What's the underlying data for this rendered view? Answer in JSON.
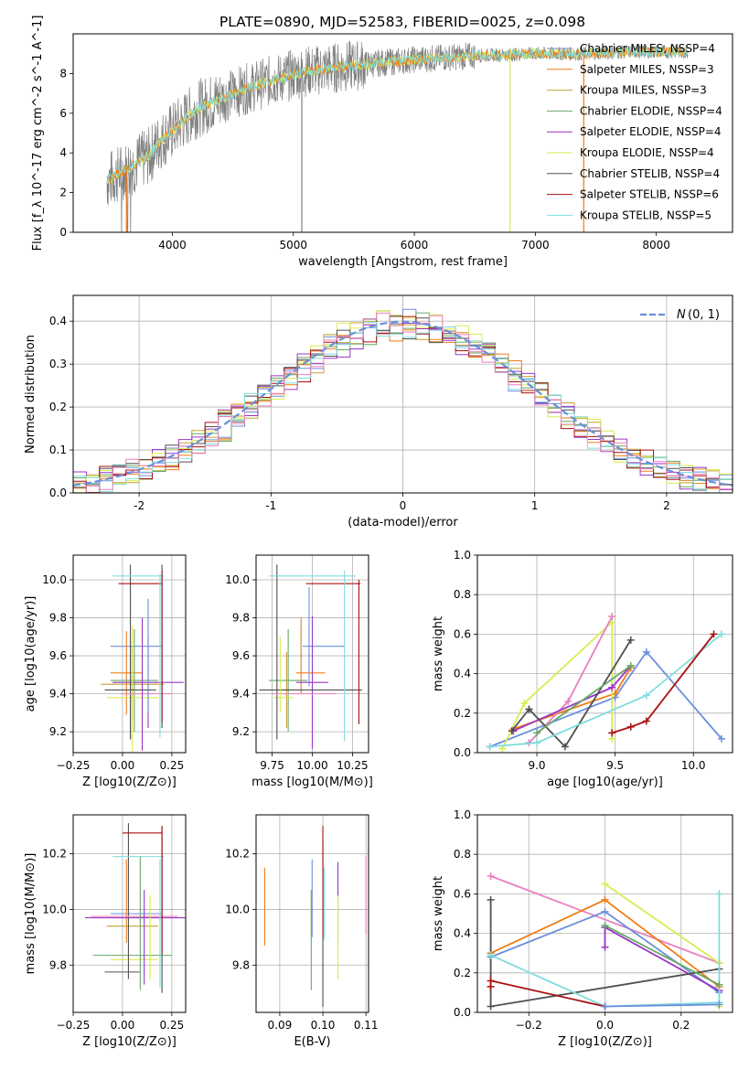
{
  "figure_title": "PLATE=0890, MJD=52583, FIBERID=0025, z=0.098",
  "colors": {
    "chabrier_miles": "#6a8fdc",
    "salpeter_miles": "#f07c16",
    "kroupa_miles": "#c8a032",
    "chabrier_elodie": "#66aa66",
    "salpeter_elodie": "#9a36c8",
    "kroupa_elodie": "#d8ec50",
    "chabrier_stelib": "#505050",
    "salpeter_stelib": "#aa1010",
    "kroupa_stelib": "#80dcdc",
    "pink": "#e880c0",
    "data_gray": "#808080",
    "normal_curve": "#6a8fdc",
    "grid": "#b0b0b0"
  },
  "chart_data": [
    {
      "id": "spectrum",
      "type": "line",
      "xlabel": "wavelength [Angstrom, rest frame]",
      "ylabel": "Flux [f_λ 10^-17 erg cm^-2 s^-1 A^-1]",
      "xlim": [
        3180,
        8630
      ],
      "ylim": [
        0,
        10
      ],
      "xticks": [
        4000,
        5000,
        6000,
        7000,
        8000
      ],
      "yticks": [
        0,
        2,
        4,
        6,
        8
      ],
      "grid": false,
      "legend_position": "right",
      "legend": [
        "Chabrier MILES, N_SSP=4",
        "Salpeter MILES, N_SSP=3",
        "Kroupa MILES, N_SSP=3",
        "Chabrier ELODIE, N_SSP=4",
        "Salpeter ELODIE, N_SSP=4",
        "Kroupa ELODIE, N_SSP=4",
        "Chabrier STELIB, N_SSP=4",
        "Salpeter STELIB, N_SSP=6",
        "Kroupa STELIB, N_SSP=5"
      ],
      "model_continuum": {
        "x": [
          3460,
          3600,
          3800,
          3900,
          4000,
          4200,
          4500,
          4800,
          5100,
          5500,
          6000,
          6500,
          7000,
          7400,
          7800,
          8200
        ],
        "y": [
          2.6,
          3.1,
          3.8,
          4.6,
          5.1,
          6.2,
          7.0,
          7.6,
          8.1,
          8.4,
          8.7,
          8.9,
          9.0,
          9.0,
          9.1,
          9.1
        ]
      }
    },
    {
      "id": "residuals",
      "type": "bar",
      "xlabel": "(data-model)/error",
      "ylabel": "Normed distribution",
      "xlim": [
        -2.5,
        2.5
      ],
      "ylim": [
        0,
        0.46
      ],
      "xticks": [
        -2,
        -1,
        0,
        1,
        2
      ],
      "yticks": [
        0.0,
        0.1,
        0.2,
        0.3,
        0.4
      ],
      "grid": true,
      "legend_position": "top-right",
      "legend": [
        "N(0,1)"
      ],
      "bin_width": 0.1
    },
    {
      "id": "age_vs_Z",
      "type": "scatter",
      "xlabel": "Z [log10(Z/Z⊙)]",
      "ylabel": "age [log10(age/yr)]",
      "xlim": [
        -0.25,
        0.32
      ],
      "ylim": [
        9.09,
        10.13
      ],
      "xticks": [
        -0.25,
        0.0,
        0.25
      ],
      "xtick_labels": [
        "−0.25",
        "0.00",
        "0.25"
      ],
      "yticks": [
        9.2,
        9.4,
        9.6,
        9.8,
        10.0
      ],
      "grid": true,
      "points": [
        {
          "c": "chabrier_miles",
          "x": 0.07,
          "xerr": 0.13,
          "y": 9.65,
          "yerr": 0.0
        },
        {
          "c": "salpeter_miles",
          "x": 0.02,
          "xerr": 0.08,
          "y": 9.51,
          "yerr": 0.22
        },
        {
          "c": "kroupa_miles",
          "x": 0.05,
          "xerr": 0.16,
          "y": 9.45,
          "yerr": 0.19
        },
        {
          "c": "chabrier_elodie",
          "x": 0.06,
          "xerr": 0.12,
          "y": 9.47,
          "yerr": 0.27
        },
        {
          "c": "salpeter_elodie",
          "x": 0.13,
          "xerr": 0.18,
          "y": 9.46,
          "yerr": 0.24
        },
        {
          "c": "kroupa_elodie",
          "x": 0.05,
          "xerr": 0.13,
          "y": 9.38,
          "yerr": 0.38
        },
        {
          "c": "chabrier_stelib",
          "x": 0.04,
          "xerr": 0.13,
          "y": 9.42,
          "yerr": 0.26
        },
        {
          "c": "chabrier_stelib",
          "x": 0.04,
          "xerr": 0.0,
          "y": 9.62,
          "yerr": 0.46
        },
        {
          "c": "salpeter_stelib",
          "x": 0.09,
          "xerr": 0.11,
          "y": 9.98,
          "yerr": 0.0
        },
        {
          "c": "kroupa_stelib",
          "x": 0.08,
          "xerr": 0.13,
          "y": 10.02,
          "yerr": 0.0
        },
        {
          "c": "pink",
          "x": 0.12,
          "xerr": 0.13,
          "y": 9.4,
          "yerr": 0.0
        },
        {
          "c": "chabrier_stelib",
          "x": 0.2,
          "xerr": 0.0,
          "y": 9.65,
          "yerr": 0.43
        },
        {
          "c": "kroupa_stelib",
          "x": 0.19,
          "xerr": 0.0,
          "y": 9.6,
          "yerr": 0.43
        },
        {
          "c": "salpeter_stelib",
          "x": 0.2,
          "xerr": 0.0,
          "y": 9.65,
          "yerr": 0.4
        },
        {
          "c": "salpeter_elodie",
          "x": 0.1,
          "xerr": 0.0,
          "y": 9.45,
          "yerr": 0.35
        },
        {
          "c": "chabrier_miles",
          "x": 0.13,
          "xerr": 0.0,
          "y": 9.6,
          "yerr": 0.3
        }
      ]
    },
    {
      "id": "age_vs_mass",
      "type": "scatter",
      "xlabel": "mass [log10(M/M⊙)]",
      "ylabel": "",
      "xlim": [
        9.65,
        10.35
      ],
      "ylim": [
        9.09,
        10.13
      ],
      "xticks": [
        9.75,
        10.0,
        10.25
      ],
      "xtick_labels": [
        "9.75",
        "10.00",
        "10.25"
      ],
      "yticks": [
        9.2,
        9.4,
        9.6,
        9.8,
        10.0
      ],
      "grid": true,
      "points": [
        {
          "c": "chabrier_miles",
          "x": 10.07,
          "xerr": 0.13,
          "y": 9.65,
          "yerr": 0.0
        },
        {
          "c": "chabrier_miles",
          "x": 9.98,
          "xerr": 0.0,
          "y": 9.7,
          "yerr": 0.26
        },
        {
          "c": "salpeter_miles",
          "x": 9.99,
          "xerr": 0.09,
          "y": 9.51,
          "yerr": 0.0
        },
        {
          "c": "salpeter_miles",
          "x": 9.93,
          "xerr": 0.0,
          "y": 9.6,
          "yerr": 0.2
        },
        {
          "c": "kroupa_miles",
          "x": 9.84,
          "xerr": 0.07,
          "y": 9.42,
          "yerr": 0.2
        },
        {
          "c": "chabrier_elodie",
          "x": 9.85,
          "xerr": 0.12,
          "y": 9.47,
          "yerr": 0.27
        },
        {
          "c": "salpeter_elodie",
          "x": 10.0,
          "xerr": 0.1,
          "y": 9.46,
          "yerr": 0.35
        },
        {
          "c": "kroupa_elodie",
          "x": 9.82,
          "xerr": 0.06,
          "y": 9.38,
          "yerr": 0.0
        },
        {
          "c": "chabrier_stelib",
          "x": 9.99,
          "xerr": 0.32,
          "y": 9.42,
          "yerr": 0.0
        },
        {
          "c": "chabrier_stelib",
          "x": 9.78,
          "xerr": 0.0,
          "y": 9.62,
          "yerr": 0.46
        },
        {
          "c": "salpeter_stelib",
          "x": 10.13,
          "xerr": 0.17,
          "y": 9.98,
          "yerr": 0.0
        },
        {
          "c": "salpeter_stelib",
          "x": 10.29,
          "xerr": 0.0,
          "y": 9.62,
          "yerr": 0.38
        },
        {
          "c": "kroupa_stelib",
          "x": 10.0,
          "xerr": 0.27,
          "y": 10.02,
          "yerr": 0.0
        },
        {
          "c": "kroupa_stelib",
          "x": 10.2,
          "xerr": 0.0,
          "y": 9.6,
          "yerr": 0.45
        },
        {
          "c": "pink",
          "x": 9.95,
          "xerr": 0.2,
          "y": 9.4,
          "yerr": 0.0
        },
        {
          "c": "kroupa_elodie",
          "x": 9.8,
          "xerr": 0.0,
          "y": 9.5,
          "yerr": 0.2
        }
      ]
    },
    {
      "id": "weight_vs_age",
      "type": "line",
      "xlabel": "age [log10(age/yr)]",
      "ylabel": "mass weight",
      "xlim": [
        8.62,
        10.25
      ],
      "ylim": [
        0,
        1.0
      ],
      "xticks": [
        9.0,
        9.5,
        10.0
      ],
      "xtick_labels": [
        "9.0",
        "9.5",
        "10.0"
      ],
      "yticks": [
        0.0,
        0.2,
        0.4,
        0.6,
        0.8,
        1.0
      ],
      "grid": true,
      "series": [
        {
          "c": "chabrier_miles",
          "x": [
            8.7,
            9.5,
            9.7,
            10.18
          ],
          "y": [
            0.03,
            0.28,
            0.51,
            0.07
          ]
        },
        {
          "c": "salpeter_miles",
          "x": [
            8.85,
            9.5,
            9.6
          ],
          "y": [
            0.12,
            0.3,
            0.43
          ]
        },
        {
          "c": "kroupa_elodie",
          "x": [
            8.78,
            8.92,
            9.48,
            9.48
          ],
          "y": [
            0.02,
            0.25,
            0.66,
            0.07
          ]
        },
        {
          "c": "pink",
          "x": [
            8.95,
            9.2,
            9.48
          ],
          "y": [
            0.05,
            0.26,
            0.69
          ]
        },
        {
          "c": "salpeter_elodie",
          "x": [
            8.85,
            9.48,
            9.6
          ],
          "y": [
            0.11,
            0.33,
            0.44
          ]
        },
        {
          "c": "chabrier_stelib",
          "x": [
            8.95,
            9.18,
            9.6
          ],
          "y": [
            0.22,
            0.03,
            0.57
          ]
        },
        {
          "c": "chabrier_stelib",
          "x": [
            8.84,
            8.95
          ],
          "y": [
            0.11,
            0.22
          ]
        },
        {
          "c": "kroupa_stelib",
          "x": [
            8.7,
            9.0,
            9.7,
            10.18
          ],
          "y": [
            0.03,
            0.05,
            0.29,
            0.6
          ]
        },
        {
          "c": "salpeter_stelib",
          "x": [
            9.48,
            9.6,
            9.7,
            10.13
          ],
          "y": [
            0.1,
            0.13,
            0.16,
            0.6
          ]
        },
        {
          "c": "chabrier_elodie",
          "x": [
            9.0,
            9.6
          ],
          "y": [
            0.1,
            0.44
          ]
        }
      ]
    },
    {
      "id": "mass_vs_Z",
      "type": "scatter",
      "xlabel": "Z [log10(Z/Z⊙)]",
      "ylabel": "mass [log10(M/M⊙)]",
      "xlim": [
        -0.25,
        0.32
      ],
      "ylim": [
        9.63,
        10.34
      ],
      "xticks": [
        -0.25,
        0.0,
        0.25
      ],
      "xtick_labels": [
        "−0.25",
        "0.00",
        "0.25"
      ],
      "yticks": [
        9.8,
        10.0,
        10.2
      ],
      "grid": true,
      "points": [
        {
          "c": "chabrier_miles",
          "x": 0.07,
          "xerr": 0.13,
          "y": 9.985,
          "yerr": 0.0
        },
        {
          "c": "salpeter_miles",
          "x": 0.02,
          "xerr": 0.0,
          "y": 10.03,
          "yerr": 0.15
        },
        {
          "c": "kroupa_miles",
          "x": 0.05,
          "xerr": 0.13,
          "y": 9.94,
          "yerr": 0.0
        },
        {
          "c": "chabrier_elodie",
          "x": 0.05,
          "xerr": 0.2,
          "y": 9.835,
          "yerr": 0.0
        },
        {
          "c": "salpeter_elodie",
          "x": 0.07,
          "xerr": 0.26,
          "y": 9.97,
          "yerr": 0.0
        },
        {
          "c": "kroupa_elodie",
          "x": 0.06,
          "xerr": 0.12,
          "y": 9.82,
          "yerr": 0.0
        },
        {
          "c": "chabrier_stelib",
          "x": 0.0,
          "xerr": 0.09,
          "y": 9.775,
          "yerr": 0.0
        },
        {
          "c": "chabrier_stelib",
          "x": 0.03,
          "xerr": 0.0,
          "y": 10.03,
          "yerr": 0.28
        },
        {
          "c": "salpeter_stelib",
          "x": 0.1,
          "xerr": 0.1,
          "y": 10.275,
          "yerr": 0.0
        },
        {
          "c": "kroupa_stelib",
          "x": 0.08,
          "xerr": 0.13,
          "y": 10.19,
          "yerr": 0.0
        },
        {
          "c": "pink",
          "x": 0.06,
          "xerr": 0.22,
          "y": 9.975,
          "yerr": 0.0
        },
        {
          "c": "chabrier_stelib",
          "x": 0.2,
          "xerr": 0.0,
          "y": 10.0,
          "yerr": 0.3
        },
        {
          "c": "salpeter_stelib",
          "x": 0.2,
          "xerr": 0.0,
          "y": 10.07,
          "yerr": 0.23
        },
        {
          "c": "kroupa_stelib",
          "x": 0.19,
          "xerr": 0.0,
          "y": 9.95,
          "yerr": 0.23
        },
        {
          "c": "kroupa_elodie",
          "x": 0.14,
          "xerr": 0.0,
          "y": 9.9,
          "yerr": 0.15
        },
        {
          "c": "chabrier_elodie",
          "x": 0.09,
          "xerr": 0.0,
          "y": 9.95,
          "yerr": 0.24
        },
        {
          "c": "salpeter_elodie",
          "x": 0.11,
          "xerr": 0.0,
          "y": 9.9,
          "yerr": 0.17
        }
      ]
    },
    {
      "id": "mass_vs_ebv",
      "type": "scatter",
      "xlabel": "E(B-V)",
      "ylabel": "",
      "xlim": [
        0.0845,
        0.1106
      ],
      "ylim": [
        9.63,
        10.34
      ],
      "xticks": [
        0.09,
        0.1,
        0.11
      ],
      "xtick_labels": [
        "0.09",
        "0.10",
        "0.11"
      ],
      "yticks": [
        9.8,
        10.0,
        10.2
      ],
      "grid": true,
      "points": [
        {
          "c": "salpeter_miles",
          "x": 0.0865,
          "xerr": 0.0,
          "y": 10.01,
          "yerr": 0.14
        },
        {
          "c": "chabrier_miles",
          "x": 0.0975,
          "xerr": 0.0,
          "y": 10.04,
          "yerr": 0.14
        },
        {
          "c": "chabrier_elodie",
          "x": 0.0973,
          "xerr": 0.0,
          "y": 9.89,
          "yerr": 0.18
        },
        {
          "c": "chabrier_stelib",
          "x": 0.1,
          "xerr": 0.0,
          "y": 9.95,
          "yerr": 0.3
        },
        {
          "c": "salpeter_stelib",
          "x": 0.1,
          "xerr": 0.0,
          "y": 10.1,
          "yerr": 0.2
        },
        {
          "c": "kroupa_stelib",
          "x": 0.1003,
          "xerr": 0.0,
          "y": 10.02,
          "yerr": 0.13
        },
        {
          "c": "salpeter_elodie",
          "x": 0.1035,
          "xerr": 0.0,
          "y": 10.03,
          "yerr": 0.14
        },
        {
          "c": "kroupa_elodie",
          "x": 0.1035,
          "xerr": 0.0,
          "y": 9.9,
          "yerr": 0.15
        },
        {
          "c": "pink",
          "x": 0.11,
          "xerr": 0.0,
          "y": 10.05,
          "yerr": 0.14
        }
      ]
    },
    {
      "id": "weight_vs_Z",
      "type": "line",
      "xlabel": "Z [log10(Z/Z⊙)]",
      "ylabel": "mass weight",
      "xlim": [
        -0.335,
        0.335
      ],
      "ylim": [
        0,
        1.0
      ],
      "xticks": [
        -0.2,
        0.0,
        0.2
      ],
      "xtick_labels": [
        "−0.2",
        "0.0",
        "0.2"
      ],
      "yticks": [
        0.0,
        0.2,
        0.4,
        0.6,
        0.8,
        1.0
      ],
      "grid": true,
      "series": [
        {
          "c": "pink",
          "x": [
            -0.3,
            0.3
          ],
          "y": [
            0.69,
            0.25
          ]
        },
        {
          "c": "chabrier_miles",
          "x": [
            -0.3,
            0.0,
            0.3
          ],
          "y": [
            0.28,
            0.51,
            0.1
          ]
        },
        {
          "c": "salpeter_miles",
          "x": [
            -0.3,
            0.0,
            0.3
          ],
          "y": [
            0.3,
            0.57,
            0.13
          ]
        },
        {
          "c": "kroupa_elodie",
          "x": [
            0.0,
            0.3,
            0.3
          ],
          "y": [
            0.65,
            0.25,
            0.03
          ]
        },
        {
          "c": "salpeter_elodie",
          "x": [
            0.0,
            0.0,
            0.3
          ],
          "y": [
            0.33,
            0.43,
            0.11
          ]
        },
        {
          "c": "chabrier_stelib",
          "x": [
            -0.3,
            -0.3,
            0.3
          ],
          "y": [
            0.57,
            0.03,
            0.22
          ]
        },
        {
          "c": "kroupa_stelib",
          "x": [
            -0.3,
            0.0,
            0.3,
            0.3
          ],
          "y": [
            0.29,
            0.03,
            0.05,
            0.6
          ]
        },
        {
          "c": "salpeter_stelib",
          "x": [
            -0.3,
            -0.3,
            0.0
          ],
          "y": [
            0.13,
            0.16,
            0.03
          ]
        },
        {
          "c": "chabrier_elodie",
          "x": [
            0.0,
            0.3
          ],
          "y": [
            0.44,
            0.14
          ]
        },
        {
          "c": "chabrier_miles",
          "x": [
            0.0,
            0.3
          ],
          "y": [
            0.03,
            0.04
          ]
        }
      ]
    }
  ]
}
